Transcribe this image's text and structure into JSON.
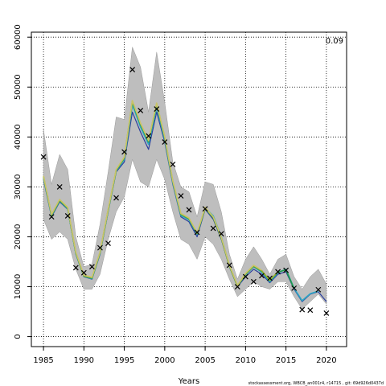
{
  "chart_data": {
    "type": "line",
    "title": "",
    "xlabel": "Years",
    "ylabel": "",
    "xlim": [
      1983.5,
      2022.5
    ],
    "ylim": [
      -2000,
      61000
    ],
    "xticks": [
      1985,
      1990,
      1995,
      2000,
      2005,
      2010,
      2015,
      2020
    ],
    "xtick_labels": [
      "1985",
      "1990",
      "1995",
      "2000",
      "2005",
      "2010",
      "2015",
      "2020"
    ],
    "yticks": [
      0,
      10000,
      20000,
      30000,
      40000,
      50000,
      60000
    ],
    "ytick_labels": [
      "0",
      "10000",
      "20000",
      "30000",
      "40000",
      "50000",
      "60000"
    ],
    "grid": true,
    "corner_note": "0.09",
    "footer_text": "stockassessment.org, WBCB_an001r4, r14715 , git: 69d926d0437d",
    "band": {
      "years": [
        1985,
        1986,
        1987,
        1988,
        1989,
        1990,
        1991,
        1992,
        1993,
        1994,
        1995,
        1996,
        1997,
        1998,
        1999,
        2000,
        2001,
        2002,
        2003,
        2004,
        2005,
        2006,
        2007,
        2008,
        2009,
        2010,
        2011,
        2012,
        2013,
        2014,
        2015,
        2016,
        2017,
        2018,
        2019,
        2020
      ],
      "upper": [
        41500,
        30500,
        36500,
        33500,
        20000,
        14000,
        14500,
        22500,
        33000,
        44000,
        43500,
        58000,
        54000,
        45000,
        57000,
        47000,
        35000,
        30000,
        29000,
        24000,
        31000,
        30500,
        25000,
        16500,
        11500,
        15500,
        18000,
        15500,
        12500,
        15500,
        16500,
        12000,
        9500,
        12000,
        13500,
        10500
      ],
      "lower": [
        23500,
        19500,
        21000,
        19500,
        13500,
        9500,
        9500,
        12500,
        19500,
        25000,
        28000,
        35500,
        31000,
        30000,
        35500,
        31500,
        25000,
        19500,
        18500,
        15500,
        20000,
        18500,
        15500,
        11500,
        8000,
        9500,
        11000,
        10000,
        9500,
        11000,
        11000,
        8000,
        5500,
        7000,
        8500,
        6500
      ]
    },
    "series": [
      {
        "color": "#2a3f9e",
        "values": [
          31500,
          24000,
          27000,
          25500,
          16500,
          12000,
          11500,
          16500,
          25000,
          33000,
          35000,
          45000,
          41000,
          37500,
          45000,
          39000,
          30500,
          24000,
          23000,
          20000,
          25500,
          23500,
          19500,
          14000,
          10000,
          12000,
          13500,
          12500,
          10800,
          12500,
          13000,
          9500,
          7000,
          8500,
          9000,
          7000
        ]
      },
      {
        "color": "#2ca6c4",
        "values": [
          31800,
          24200,
          27200,
          25600,
          16600,
          12100,
          11600,
          16700,
          25200,
          33200,
          35500,
          46500,
          42000,
          38500,
          46000,
          39500,
          30800,
          24300,
          23400,
          20500,
          25800,
          24200,
          20000,
          14200,
          10200,
          12400,
          14000,
          12900,
          11000,
          12800,
          13500,
          9700,
          7200,
          8600,
          9100,
          null
        ]
      },
      {
        "color": "#1f9c4a",
        "values": [
          32000,
          24300,
          27300,
          25700,
          16700,
          12100,
          11700,
          16800,
          25300,
          33300,
          35800,
          47000,
          42500,
          39000,
          46500,
          39800,
          31000,
          24500,
          23600,
          20600,
          25700,
          23800,
          19700,
          14100,
          10100,
          12500,
          14100,
          13100,
          11200,
          12900,
          13400,
          9600,
          null,
          null,
          null,
          null
        ]
      },
      {
        "color": "#9ab02c",
        "values": [
          32100,
          24400,
          27400,
          25800,
          16800,
          12200,
          11800,
          16900,
          25400,
          33400,
          35900,
          47200,
          42700,
          39200,
          46700,
          40000,
          31100,
          24600,
          23700,
          20700,
          25800,
          23900,
          19800,
          14200,
          10200,
          12600,
          14200,
          13200,
          11300,
          13000,
          null,
          null,
          null,
          null,
          null,
          null
        ]
      },
      {
        "color": "#c9c46a",
        "values": [
          32200,
          24500,
          27500,
          25900,
          16900,
          12300,
          11900,
          17000,
          25500,
          33500,
          36000,
          47300,
          42800,
          39300,
          46800,
          40100,
          31200,
          24700,
          23800,
          20800,
          25900,
          24000,
          19900,
          14300,
          10300,
          12700,
          14300,
          13300,
          null,
          null,
          null,
          null,
          null,
          null,
          null,
          null
        ]
      }
    ],
    "observations": {
      "marker": "x",
      "years": [
        1985,
        1986,
        1987,
        1988,
        1989,
        1990,
        1991,
        1992,
        1993,
        1994,
        1995,
        1996,
        1997,
        1998,
        1999,
        2000,
        2001,
        2002,
        2003,
        2004,
        2005,
        2006,
        2007,
        2008,
        2009,
        2010,
        2011,
        2012,
        2013,
        2014,
        2015,
        2016,
        2017,
        2018,
        2019,
        2020
      ],
      "values": [
        36000,
        24000,
        30000,
        24200,
        13800,
        12800,
        14000,
        17800,
        18700,
        27800,
        37000,
        53500,
        45300,
        40200,
        45600,
        39000,
        34500,
        28200,
        25400,
        20900,
        25600,
        21700,
        20600,
        14300,
        10000,
        12000,
        11000,
        12200,
        11700,
        13000,
        13300,
        9700,
        5400,
        5300,
        9400,
        4700
      ]
    }
  }
}
